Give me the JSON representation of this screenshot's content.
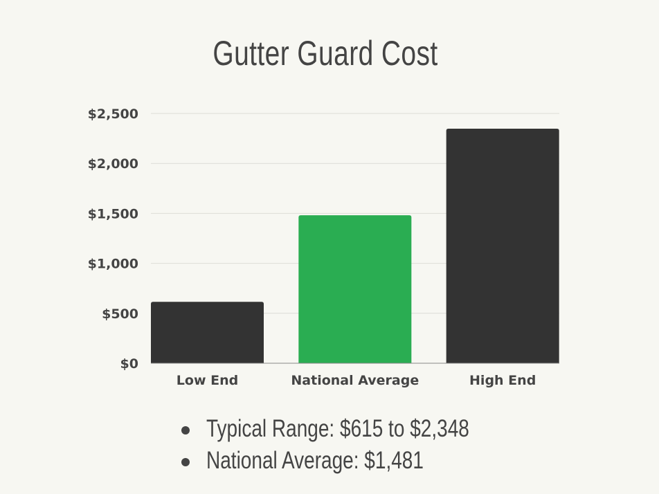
{
  "chart_data": {
    "type": "bar",
    "title": "Gutter Guard Cost",
    "categories": [
      "Low End",
      "National Average",
      "High End"
    ],
    "values": [
      615,
      1481,
      2348
    ],
    "bar_colors": [
      "#333333",
      "#2aad52",
      "#333333"
    ],
    "ylim": [
      0,
      2500
    ],
    "yticks": [
      0,
      500,
      1000,
      1500,
      2000,
      2500
    ],
    "ytick_labels": [
      "$0",
      "$500",
      "$1,000",
      "$1,500",
      "$2,000",
      "$2,500"
    ],
    "grid": true,
    "xlabel": "",
    "ylabel": ""
  },
  "notes": [
    "Typical Range: $615 to $2,348",
    "National Average: $1,481"
  ],
  "colors": {
    "background": "#f7f7f2",
    "text": "#444444",
    "highlight": "#2aad52",
    "bar": "#333333"
  }
}
